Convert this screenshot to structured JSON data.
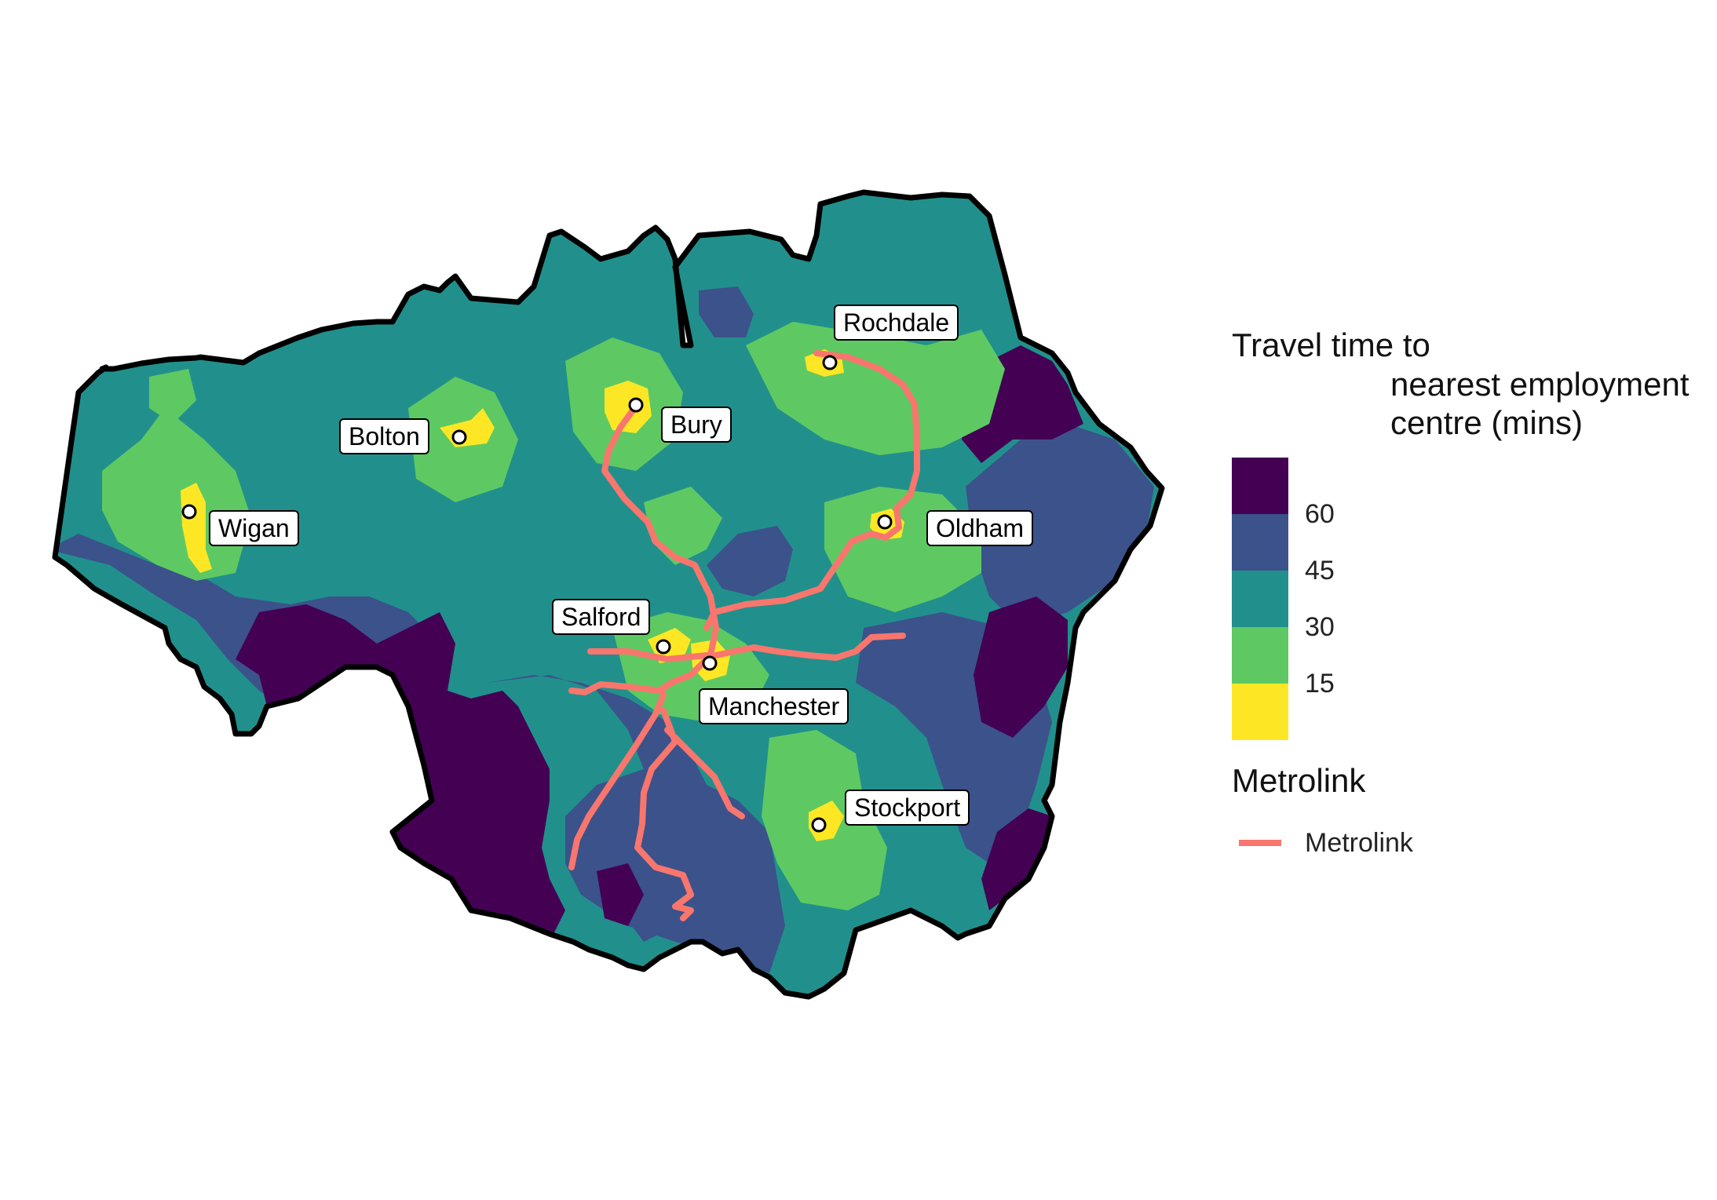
{
  "legend": {
    "travel_title_line1": "Travel time to",
    "travel_title_line2": "nearest employment",
    "travel_title_line3": "centre (mins)",
    "bins": [
      {
        "color": "#440154",
        "label": ""
      },
      {
        "color": "#3b528b",
        "label": "60"
      },
      {
        "color": "#21908c",
        "label": "45"
      },
      {
        "color": "#5ec962",
        "label": "30"
      },
      {
        "color": "#fde725",
        "label": "15"
      }
    ],
    "ticks": [
      "60",
      "45",
      "30",
      "15"
    ],
    "metrolink_title": "Metrolink",
    "metrolink_item": "Metrolink",
    "metrolink_color": "#f8766d"
  },
  "towns": {
    "rochdale": "Rochdale",
    "bury": "Bury",
    "bolton": "Bolton",
    "wigan": "Wigan",
    "oldham": "Oldham",
    "salford": "Salford",
    "manchester": "Manchester",
    "stockport": "Stockport"
  },
  "colors": {
    "boundary": "#000000",
    "over_60": "#440154",
    "45_60": "#3b528b",
    "30_45": "#21908c",
    "15_30": "#5ec962",
    "under_15": "#fde725"
  }
}
